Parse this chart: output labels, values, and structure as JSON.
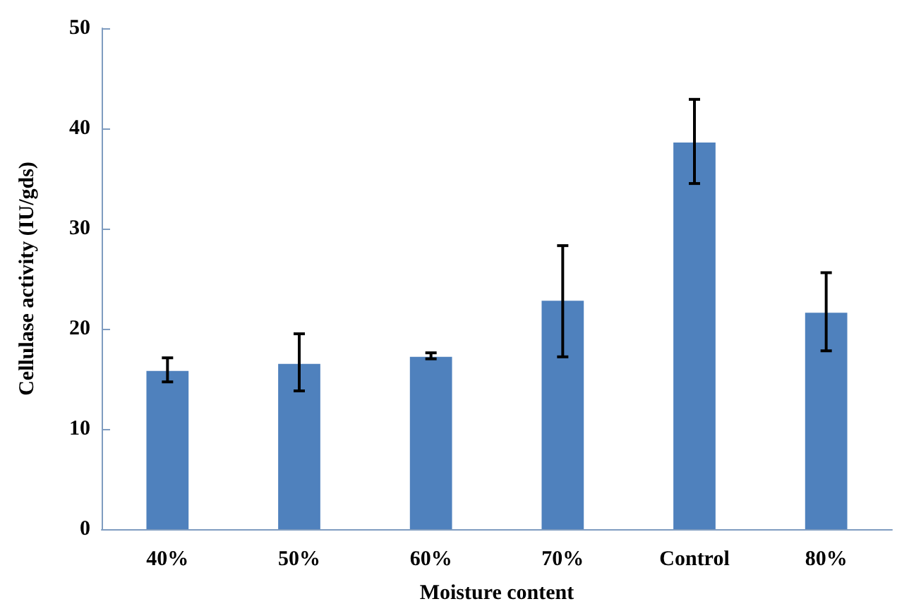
{
  "chart_data": {
    "type": "bar",
    "xlabel": "Moisture content",
    "ylabel": "Cellulase activity (IU/gds)",
    "categories": [
      "40%",
      "50%",
      "60%",
      "70%",
      "Control",
      "80%"
    ],
    "values": [
      15.8,
      16.5,
      17.2,
      22.8,
      38.6,
      21.6
    ],
    "errors": [
      [
        14.7,
        17.1
      ],
      [
        13.8,
        19.5
      ],
      [
        17.0,
        17.6
      ],
      [
        17.2,
        28.3
      ],
      [
        34.5,
        42.9
      ],
      [
        17.8,
        25.6
      ]
    ],
    "color": "#4f81bd",
    "ylim": [
      0,
      50
    ],
    "yticks": [
      0,
      10,
      20,
      30,
      40,
      50
    ],
    "grid": false
  }
}
